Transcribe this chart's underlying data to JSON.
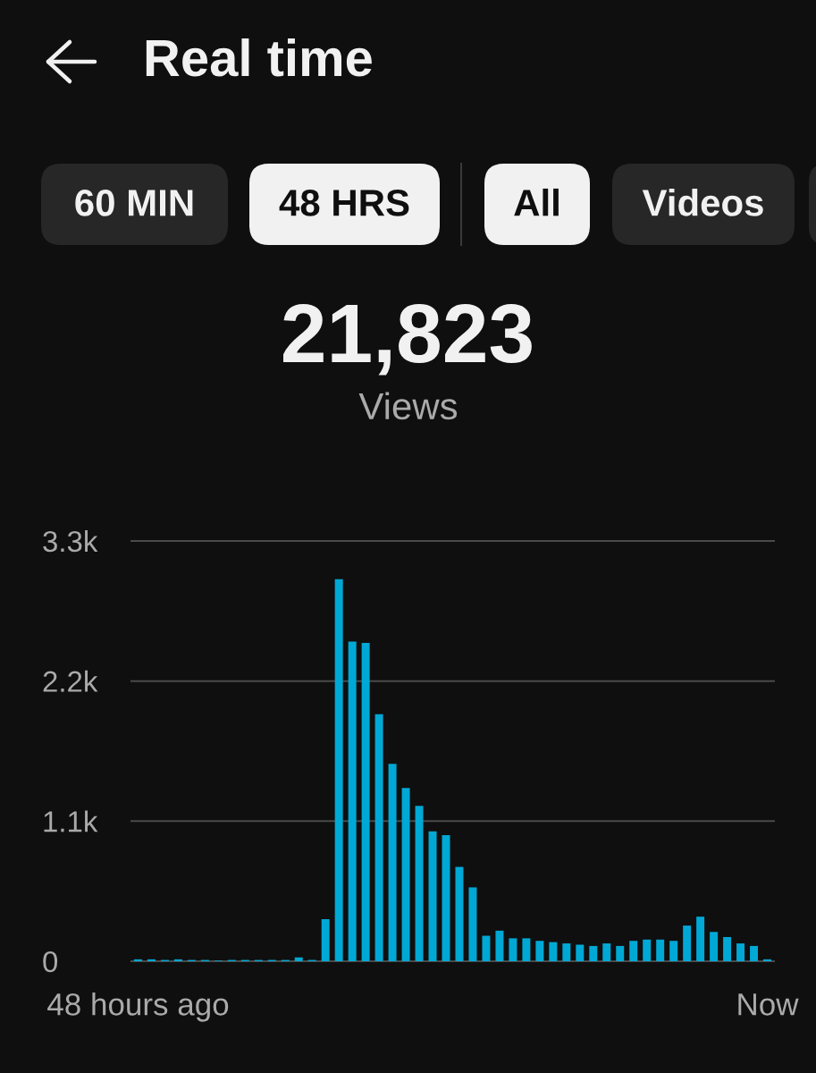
{
  "chart_data": {
    "type": "bar",
    "title": "Real time",
    "annotations": [
      "60 MIN",
      "48 HRS",
      "All",
      "Videos",
      "21,823",
      "Views"
    ],
    "categories": [
      "48 hours ago",
      null,
      null,
      null,
      null,
      null,
      null,
      null,
      null,
      null,
      null,
      null,
      null,
      null,
      null,
      null,
      null,
      null,
      null,
      null,
      null,
      null,
      null,
      null,
      null,
      null,
      null,
      null,
      null,
      null,
      null,
      null,
      null,
      null,
      null,
      null,
      null,
      null,
      null,
      null,
      null,
      null,
      null,
      null,
      null,
      null,
      null,
      "Now"
    ],
    "values": [
      15,
      15,
      10,
      15,
      10,
      10,
      5,
      10,
      10,
      10,
      10,
      10,
      30,
      10,
      330,
      3000,
      2510,
      2500,
      1940,
      1550,
      1360,
      1220,
      1020,
      990,
      740,
      580,
      200,
      240,
      180,
      180,
      160,
      150,
      140,
      130,
      120,
      140,
      120,
      160,
      170,
      170,
      160,
      280,
      350,
      230,
      190,
      140,
      120,
      15
    ],
    "color": "#00a8d5",
    "ylim": [
      0,
      3300
    ],
    "yticks": [
      0,
      {
        "value": 1100,
        "label": "1.1k"
      },
      {
        "value": 2200,
        "label": "2.2k"
      },
      {
        "value": 3300,
        "label": "3.3k"
      }
    ],
    "grid": "y"
  }
}
